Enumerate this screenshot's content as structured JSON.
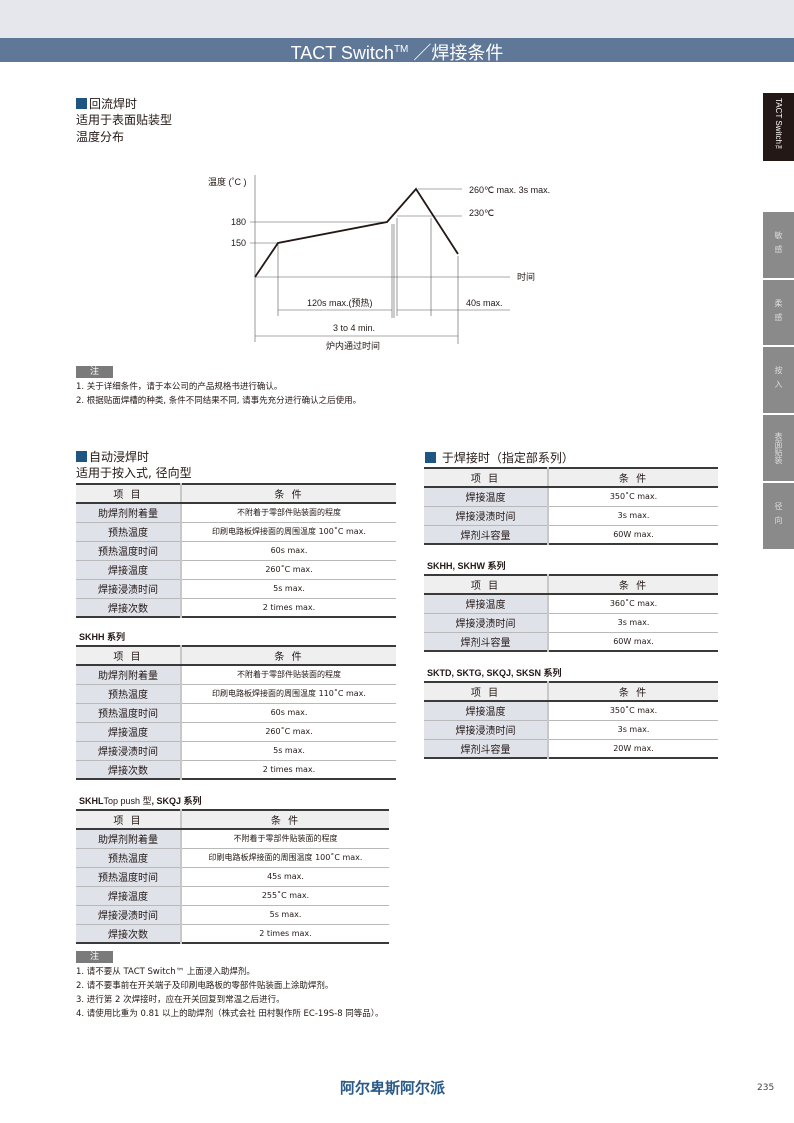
{
  "header": {
    "title": "TACT Switch",
    "title_sup": "TM",
    "title_suffix": " ／焊接条件"
  },
  "side_tabs": [
    {
      "label": "TACT Switch™",
      "active": true
    },
    {
      "label": "敏感"
    },
    {
      "label": "柔感"
    },
    {
      "label": "按入"
    },
    {
      "label": "表面贴装"
    },
    {
      "label": "径向"
    }
  ],
  "reflow": {
    "heading": "回流焊时",
    "line2": "适用于表面贴装型",
    "line3": "温度分布",
    "diagram": {
      "y_label": "温度 (˚C )",
      "x_label": "时间",
      "tick_180": "180",
      "tick_150": "150",
      "peak_label": "260℃ max. 3s max.",
      "l230": "230℃",
      "preheat": "120s max.(预热)",
      "dwell": "40s max.",
      "total": "3 to 4 min.",
      "total_label": "炉内通过时间"
    },
    "note_tag": "注",
    "notes": [
      "1. 关于详细条件，请于本公司的产品规格书进行确认。",
      "2. 根据贴面焊槽的种类, 条件不同结果不同, 请事先充分进行确认之后使用。"
    ]
  },
  "dip": {
    "heading": "自动浸焊时",
    "line2": "适用于按入式, 径向型",
    "tables": [
      {
        "title": "",
        "header": [
          "项 目",
          "条 件"
        ],
        "rows": [
          [
            "助焊剂附着量",
            "不附着于零部件贴装面的程度"
          ],
          [
            "预热温度",
            "印刷电路板焊接面的周围温度 100˚C max."
          ],
          [
            "预热温度时间",
            "60s max."
          ],
          [
            "焊接温度",
            "260˚C max."
          ],
          [
            "焊接浸渍时间",
            "5s max."
          ],
          [
            "焊接次数",
            "2 times max."
          ]
        ]
      },
      {
        "title": "SKHH 系列",
        "header": [
          "项 目",
          "条 件"
        ],
        "rows": [
          [
            "助焊剂附着量",
            "不附着于零部件贴装面的程度"
          ],
          [
            "预热温度",
            "印刷电路板焊接面的周围温度 110˚C max."
          ],
          [
            "预热温度时间",
            "60s max."
          ],
          [
            "焊接温度",
            "260˚C max."
          ],
          [
            "焊接浸渍时间",
            "5s max."
          ],
          [
            "焊接次数",
            "2 times max."
          ]
        ]
      },
      {
        "title_bold": "SKHL",
        "title_normal": "Top push 型",
        "title_rest": ", SKQJ  系列",
        "header": [
          "项 目",
          "条 件"
        ],
        "rows": [
          [
            "助焊剂附着量",
            "不附着于零部件贴装面的程度"
          ],
          [
            "预热温度",
            "印刷电路板焊接面的周围温度 100˚C max."
          ],
          [
            "预热温度时间",
            "45s max."
          ],
          [
            "焊接温度",
            "255˚C max."
          ],
          [
            "焊接浸渍时间",
            "5s max."
          ],
          [
            "焊接次数",
            "2 times max."
          ]
        ]
      }
    ],
    "note_tag": "注",
    "notes": [
      "1. 请不要从 TACT Switch™ 上面浸入助焊剂。",
      "2. 请不要事前在开关端子及印刷电路板的零部件贴装面上涂助焊剂。",
      "3. 进行第 2 次焊接时，应在开关回复到常温之后进行。",
      "4. 请使用比重为 0.81 以上的助焊剂（株式会社 田村製作所 EC-19S-8 同等品）。"
    ]
  },
  "manual": {
    "heading": "于焊接时（指定部系列）",
    "tables": [
      {
        "title": "",
        "header": [
          "项 目",
          "条 件"
        ],
        "rows": [
          [
            "焊接温度",
            "350˚C max."
          ],
          [
            "焊接浸渍时间",
            "3s max."
          ],
          [
            "焊剂斗容量",
            "60W max."
          ]
        ]
      },
      {
        "title": "SKHH, SKHW 系列",
        "header": [
          "项 目",
          "条 件"
        ],
        "rows": [
          [
            "焊接温度",
            "360˚C max."
          ],
          [
            "焊接浸渍时间",
            "3s max."
          ],
          [
            "焊剂斗容量",
            "60W max."
          ]
        ]
      },
      {
        "title": "SKTD, SKTG, SKQJ, SKSN 系列",
        "header": [
          "项 目",
          "条 件"
        ],
        "rows": [
          [
            "焊接温度",
            "350˚C max."
          ],
          [
            "焊接浸渍时间",
            "3s max."
          ],
          [
            "焊剂斗容量",
            "20W max."
          ]
        ]
      }
    ]
  },
  "footer": {
    "brand": "阿尔卑斯阿尔派",
    "page": "235"
  },
  "colors": {
    "header_bar": "#5f7898",
    "brand": "#2a5a88",
    "bullet": "#1f5583"
  }
}
